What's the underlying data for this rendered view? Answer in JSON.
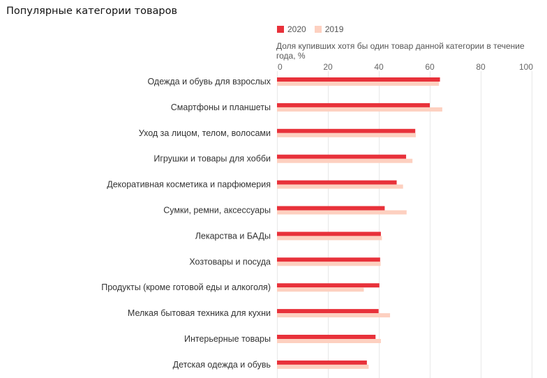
{
  "title": "Популярные категории товаров",
  "chart_data": {
    "type": "bar",
    "orientation": "horizontal",
    "title": "Популярные категории товаров",
    "xlabel": "Доля купивших хотя бы один товар данной категории в течение года, %",
    "ylabel": "",
    "xlim": [
      0,
      100
    ],
    "xticks": [
      0,
      20,
      40,
      60,
      80,
      100
    ],
    "grid": true,
    "legend_position": "top",
    "categories": [
      "Одежда и обувь для взрослых",
      "Смартфоны и планшеты",
      "Уход за лицом, телом, волосами",
      "Игрушки и товары для хобби",
      "Декоративная косметика и парфюмерия",
      "Сумки, ремни, аксессуары",
      "Лекарства и БАДы",
      "Хозтовары и посуда",
      "Продукты (кроме готовой еды и алкоголя)",
      "Мелкая бытовая техника для кухни",
      "Интерьерные товары",
      "Детская одежда и обувь"
    ],
    "series": [
      {
        "name": "2020",
        "color": "#e8313a",
        "values": [
          64,
          60,
          54.3,
          50.7,
          47,
          42.3,
          40.8,
          40.5,
          40.2,
          39.9,
          38.7,
          35.3
        ]
      },
      {
        "name": "2019",
        "color": "#fdd0c0",
        "values": [
          63.6,
          64.9,
          54.5,
          53.2,
          49.5,
          50.9,
          41.2,
          40.7,
          34.1,
          44.4,
          40.8,
          36
        ]
      }
    ]
  }
}
